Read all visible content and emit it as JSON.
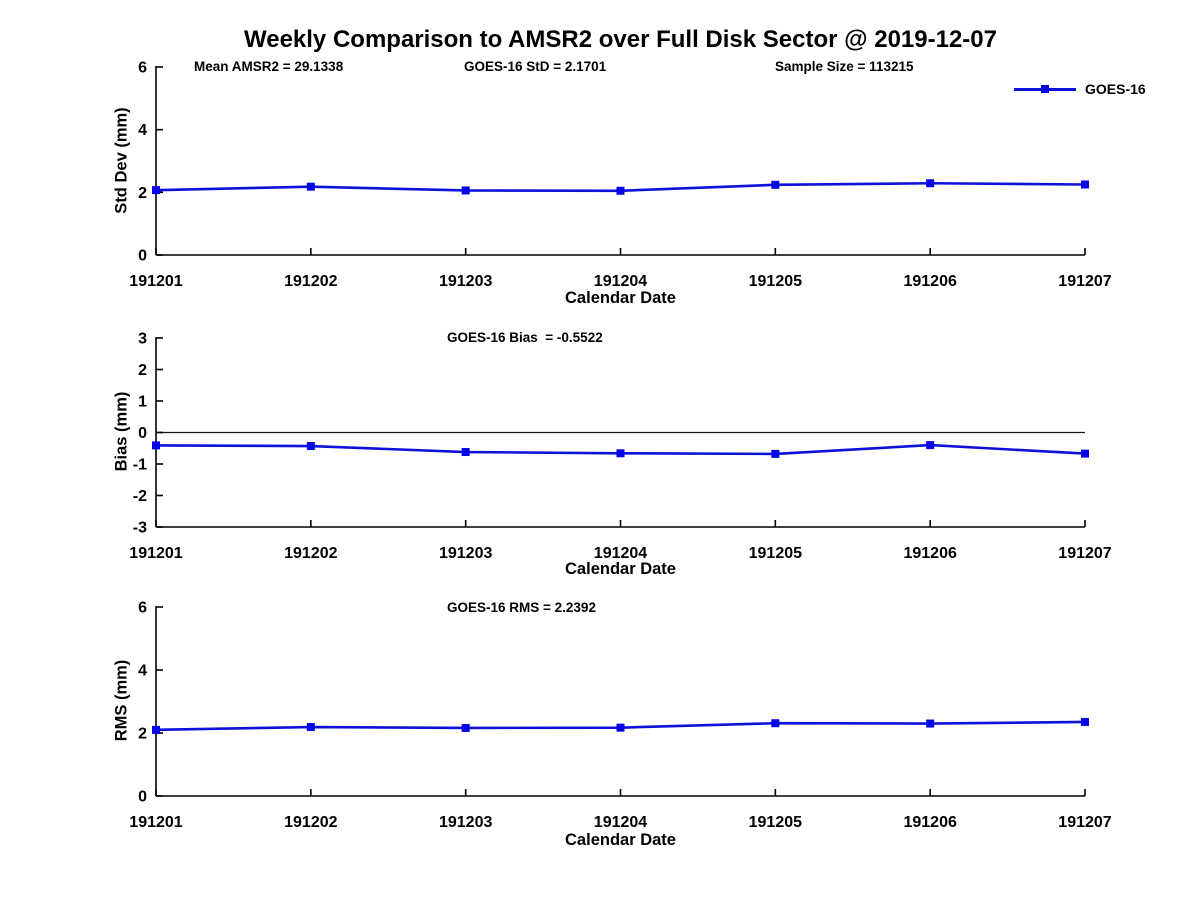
{
  "figure": {
    "title": "Weekly Comparison to AMSR2 over Full Disk Sector @ 2019-12-07",
    "background": "#ffffff"
  },
  "colors": {
    "line": "#0f10d9",
    "marker": "#0505e8",
    "axis": "#000000",
    "zero_line": "#1a1a1a",
    "text": "#000000"
  },
  "legend": {
    "label": "GOES-16"
  },
  "chart_data": [
    {
      "type": "line",
      "panel": "std-dev",
      "title": "",
      "ylabel": "Std Dev (mm)",
      "xlabel": "Calendar Date",
      "categories": [
        "191201",
        "191202",
        "191203",
        "191204",
        "191205",
        "191206",
        "191207"
      ],
      "series": [
        {
          "name": "GOES-16",
          "values": [
            2.07,
            2.18,
            2.06,
            2.05,
            2.24,
            2.29,
            2.25
          ]
        }
      ],
      "ylim": [
        0,
        6
      ],
      "yticks": [
        0,
        2,
        4,
        6
      ],
      "grid": false,
      "zero_line": false,
      "legend_position": "top-right",
      "annotations": [
        {
          "name": "mean-amsr2",
          "text": "Mean AMSR2 = 29.1338"
        },
        {
          "name": "goes16-std",
          "text": "GOES-16 StD = 2.1701"
        },
        {
          "name": "sample-size",
          "text": "Sample Size = 113215"
        }
      ]
    },
    {
      "type": "line",
      "panel": "bias",
      "title": "",
      "ylabel": "Bias (mm)",
      "xlabel": "Calendar Date",
      "categories": [
        "191201",
        "191202",
        "191203",
        "191204",
        "191205",
        "191206",
        "191207"
      ],
      "series": [
        {
          "name": "GOES-16",
          "values": [
            -0.41,
            -0.43,
            -0.62,
            -0.66,
            -0.68,
            -0.4,
            -0.67
          ]
        }
      ],
      "ylim": [
        -3,
        3
      ],
      "yticks": [
        3,
        2,
        1,
        0,
        -1,
        -2,
        -3
      ],
      "grid": false,
      "zero_line": true,
      "annotations": [
        {
          "name": "goes16-bias",
          "text": "GOES-16 Bias  = -0.5522"
        }
      ]
    },
    {
      "type": "line",
      "panel": "rms",
      "title": "",
      "ylabel": "RMS (mm)",
      "xlabel": "Calendar Date",
      "categories": [
        "191201",
        "191202",
        "191203",
        "191204",
        "191205",
        "191206",
        "191207"
      ],
      "series": [
        {
          "name": "GOES-16",
          "values": [
            2.1,
            2.19,
            2.16,
            2.17,
            2.31,
            2.3,
            2.35
          ]
        }
      ],
      "ylim": [
        0,
        6
      ],
      "yticks": [
        0,
        2,
        4,
        6
      ],
      "grid": false,
      "zero_line": false,
      "annotations": [
        {
          "name": "goes16-rms",
          "text": "GOES-16 RMS = 2.2392"
        }
      ]
    }
  ]
}
